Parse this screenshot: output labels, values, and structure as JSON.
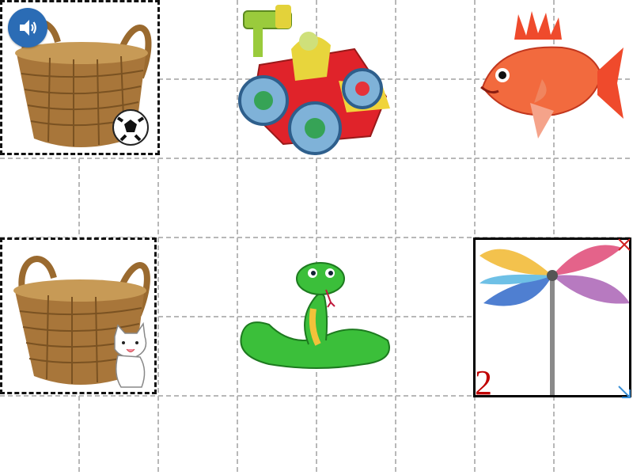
{
  "board": {
    "selected_number": "2"
  },
  "tiles": [
    {
      "name": "basket-with-ball"
    },
    {
      "name": "toy-race-car"
    },
    {
      "name": "red-fish"
    },
    {
      "name": "basket-with-cat"
    },
    {
      "name": "green-snake"
    },
    {
      "name": "pinwheel"
    }
  ],
  "icons": {
    "audio": "speaker-icon",
    "close": "close-icon",
    "resize": "resize-arrow-icon"
  },
  "colors": {
    "audio_button": "#2b6cb5",
    "number": "#c00000",
    "grid_line": "#b8b8b8"
  }
}
